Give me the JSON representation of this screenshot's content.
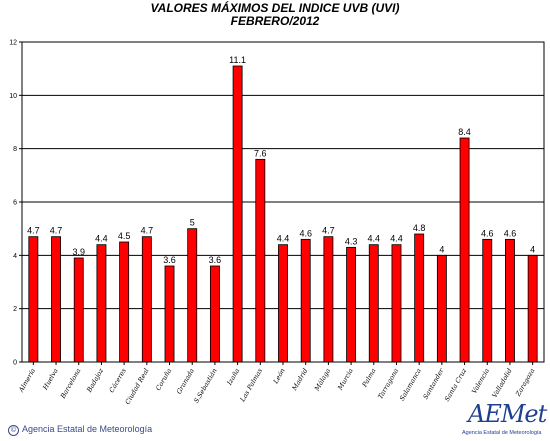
{
  "chart_data": {
    "type": "bar",
    "title": "VALORES MÁXIMOS DEL INDICE UVB (UVI)",
    "subtitle": "FEBRERO/2012",
    "xlabel": "",
    "ylabel": "",
    "ylim": [
      0,
      12
    ],
    "yticks": [
      "0",
      "2",
      "4",
      "6",
      "8",
      "10",
      "12"
    ],
    "grid": true,
    "bar_color": "#ff0000",
    "categories": [
      "Almería",
      "Huelva",
      "Barcelona",
      "Badajoz",
      "Cáceres",
      "Ciudad Real",
      "Coruña",
      "Granada",
      "S.Sebastián",
      "Izaña",
      "Las Palmas",
      "León",
      "Madrid",
      "Málaga",
      "Murcia",
      "Palma",
      "Tarragona",
      "Salamanca",
      "Santander",
      "Santa Cruz",
      "Valencia",
      "Valladolid",
      "Zaragoza"
    ],
    "values": [
      4.7,
      4.7,
      3.9,
      4.4,
      4.5,
      4.7,
      3.6,
      5,
      3.6,
      11.1,
      7.6,
      4.4,
      4.6,
      4.7,
      4.3,
      4.4,
      4.4,
      4.8,
      4,
      8.4,
      4.6,
      4.6,
      4
    ],
    "data_labels": [
      "4.7",
      "4.7",
      "3.9",
      "4.4",
      "4.5",
      "4.7",
      "3.6",
      "5",
      "3.6",
      "11.1",
      "7.6",
      "4.4",
      "4.6",
      "4.7",
      "4.3",
      "4.4",
      "4.4",
      "4.8",
      "4",
      "8.4",
      "4.6",
      "4.6",
      "4"
    ]
  },
  "footer": {
    "copyright_symbol": "©",
    "agency": "Agencia Estatal de Meteorología"
  },
  "logo": {
    "text": "AEMet",
    "subtext": "Agencia Estatal de Meteorología"
  }
}
